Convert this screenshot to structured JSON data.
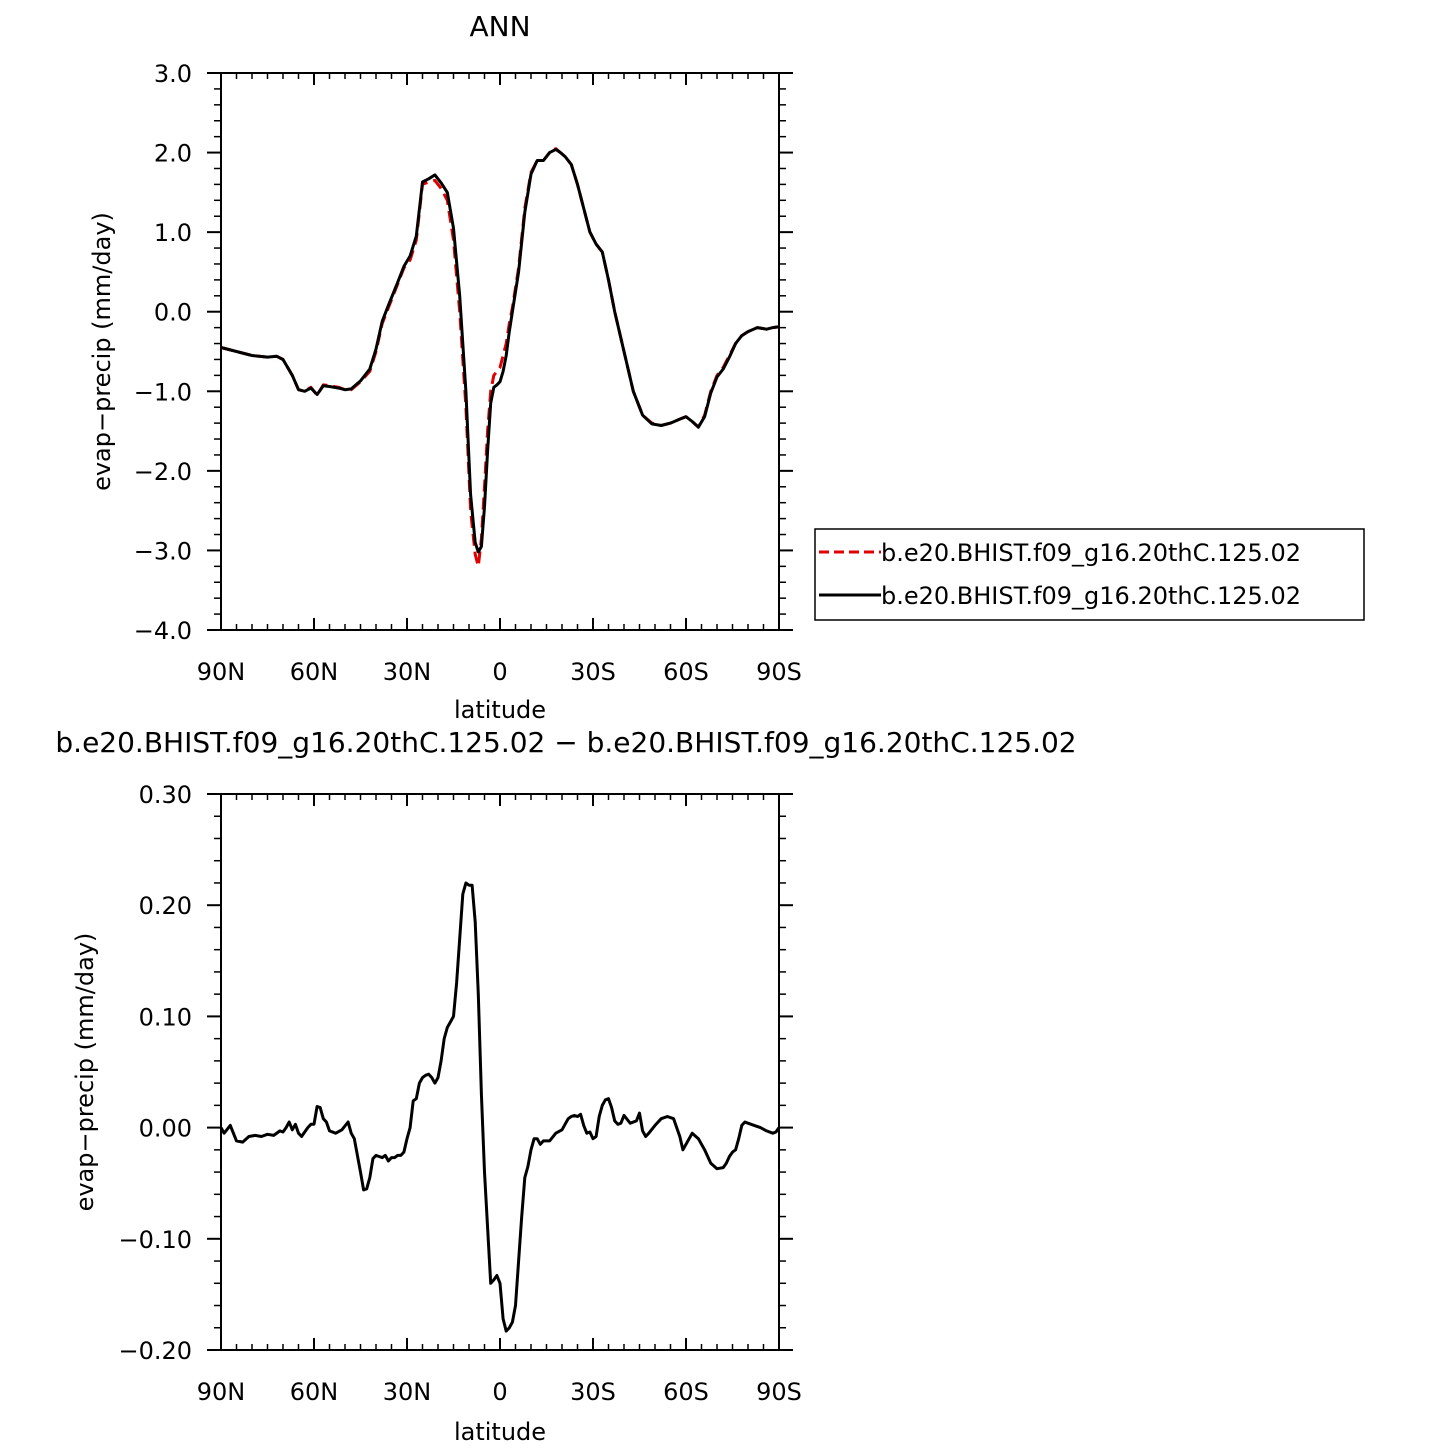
{
  "chart_data": [
    {
      "type": "line",
      "title": "ANN",
      "xlabel": "latitude",
      "ylabel": "evap−precip (mm/day)",
      "xlim": [
        90,
        -90
      ],
      "ylim": [
        -4.0,
        3.0
      ],
      "x_ticks": [
        90,
        60,
        30,
        0,
        -30,
        -60,
        -90
      ],
      "x_tick_labels": [
        "90N",
        "60N",
        "30N",
        "0",
        "30S",
        "60S",
        "90S"
      ],
      "y_ticks": [
        3.0,
        2.0,
        1.0,
        0.0,
        -1.0,
        -2.0,
        -3.0,
        -4.0
      ],
      "y_tick_labels": [
        "3.0",
        "2.0",
        "1.0",
        "0.0",
        "−1.0",
        "−2.0",
        "−3.0",
        "−4.0"
      ],
      "legend_position": "right",
      "series": [
        {
          "name": "b.e20.BHIST.f09_g16.20thC.125.02",
          "color": "#e00000",
          "style": "dashed",
          "x": [
            90,
            85,
            80,
            75,
            72,
            70,
            67,
            65,
            63,
            61,
            59,
            57,
            55,
            52,
            50,
            48,
            45,
            42,
            40,
            38,
            36,
            33,
            31,
            29,
            27,
            25,
            23,
            21,
            19,
            17,
            15,
            13,
            11,
            9.5,
            8,
            7,
            6,
            5,
            4,
            3,
            2,
            1,
            0,
            -1,
            -2,
            -3,
            -4,
            -6,
            -8,
            -10,
            -12,
            -14,
            -16,
            -18,
            -19.5,
            -21,
            -23,
            -25,
            -27,
            -29,
            -31,
            -33,
            -35,
            -37,
            -40,
            -43,
            -46,
            -49,
            -52,
            -55,
            -58,
            -60,
            -62,
            -64,
            -66,
            -68,
            -70,
            -72,
            -74,
            -76,
            -78,
            -80,
            -83,
            -86,
            -88,
            -90
          ],
          "y": [
            -0.45,
            -0.5,
            -0.55,
            -0.57,
            -0.56,
            -0.6,
            -0.8,
            -0.98,
            -1.0,
            -0.95,
            -1.05,
            -0.92,
            -0.93,
            -0.95,
            -0.98,
            -0.98,
            -0.88,
            -0.75,
            -0.5,
            -0.15,
            0.05,
            0.35,
            0.55,
            0.65,
            0.9,
            1.6,
            1.63,
            1.65,
            1.55,
            1.4,
            0.9,
            0.0,
            -1.2,
            -2.5,
            -3.05,
            -3.2,
            -2.85,
            -2.2,
            -1.5,
            -1.0,
            -0.8,
            -0.75,
            -0.7,
            -0.55,
            -0.4,
            -0.15,
            0.05,
            0.55,
            1.3,
            1.75,
            1.9,
            1.9,
            2.0,
            2.05,
            2.0,
            1.95,
            1.85,
            1.6,
            1.3,
            1.0,
            0.85,
            0.75,
            0.4,
            0.0,
            -0.5,
            -1.0,
            -1.3,
            -1.4,
            -1.43,
            -1.4,
            -1.35,
            -1.32,
            -1.38,
            -1.45,
            -1.3,
            -1.0,
            -0.8,
            -0.7,
            -0.55,
            -0.4,
            -0.3,
            -0.25,
            -0.2,
            -0.22,
            -0.2,
            -0.19
          ]
        },
        {
          "name": "b.e20.BHIST.f09_g16.20thC.125.02",
          "color": "#000000",
          "style": "solid",
          "x": [
            90,
            85,
            80,
            75,
            72,
            70,
            67,
            65,
            63,
            61,
            59,
            57,
            55,
            52,
            50,
            48,
            45,
            42,
            40,
            38,
            36,
            33,
            31,
            29,
            27,
            25,
            23,
            21,
            19,
            17,
            15,
            13,
            11,
            9.5,
            8,
            7,
            6,
            5,
            4,
            3,
            2,
            1,
            0,
            -1,
            -2,
            -3,
            -4,
            -6,
            -8,
            -10,
            -12,
            -14,
            -16,
            -18,
            -19.5,
            -21,
            -23,
            -25,
            -27,
            -29,
            -31,
            -33,
            -35,
            -37,
            -40,
            -43,
            -46,
            -49,
            -52,
            -55,
            -58,
            -60,
            -62,
            -64,
            -66,
            -68,
            -70,
            -72,
            -74,
            -76,
            -78,
            -80,
            -83,
            -86,
            -88,
            -90
          ],
          "y": [
            -0.45,
            -0.5,
            -0.55,
            -0.57,
            -0.56,
            -0.6,
            -0.8,
            -0.98,
            -1.0,
            -0.96,
            -1.04,
            -0.93,
            -0.94,
            -0.96,
            -0.98,
            -0.97,
            -0.87,
            -0.72,
            -0.47,
            -0.12,
            0.08,
            0.37,
            0.57,
            0.7,
            0.95,
            1.63,
            1.67,
            1.72,
            1.62,
            1.5,
            1.05,
            0.2,
            -1.0,
            -2.3,
            -2.9,
            -3.02,
            -2.95,
            -2.45,
            -1.75,
            -1.15,
            -0.95,
            -0.92,
            -0.88,
            -0.75,
            -0.55,
            -0.25,
            0.0,
            0.5,
            1.25,
            1.73,
            1.9,
            1.9,
            2.0,
            2.04,
            2.0,
            1.95,
            1.85,
            1.6,
            1.3,
            1.0,
            0.85,
            0.75,
            0.4,
            0.0,
            -0.5,
            -1.0,
            -1.3,
            -1.41,
            -1.43,
            -1.4,
            -1.35,
            -1.32,
            -1.38,
            -1.45,
            -1.32,
            -1.02,
            -0.82,
            -0.72,
            -0.57,
            -0.4,
            -0.3,
            -0.25,
            -0.2,
            -0.22,
            -0.2,
            -0.19
          ]
        }
      ]
    },
    {
      "type": "line",
      "title": "b.e20.BHIST.f09_g16.20thC.125.02 − b.e20.BHIST.f09_g16.20thC.125.02",
      "xlabel": "latitude",
      "ylabel": "evap−precip (mm/day)",
      "xlim": [
        90,
        -90
      ],
      "ylim": [
        -0.2,
        0.3
      ],
      "x_ticks": [
        90,
        60,
        30,
        0,
        -30,
        -60,
        -90
      ],
      "x_tick_labels": [
        "90N",
        "60N",
        "30N",
        "0",
        "30S",
        "60S",
        "90S"
      ],
      "y_ticks": [
        0.3,
        0.2,
        0.1,
        0.0,
        -0.1,
        -0.2
      ],
      "y_tick_labels": [
        "0.30",
        "0.20",
        "0.10",
        "0.00",
        "−0.10",
        "−0.20"
      ],
      "series": [
        {
          "color": "#000000",
          "style": "solid",
          "x": [
            90,
            89,
            87,
            85,
            83,
            81,
            79,
            77,
            75,
            73,
            71,
            70,
            69,
            68,
            67,
            66,
            65,
            64,
            63,
            62,
            61,
            60,
            59,
            58,
            57,
            56,
            55,
            53,
            51,
            49,
            48,
            47,
            46,
            45,
            44,
            43,
            42,
            41,
            40,
            39,
            38,
            37,
            36,
            35,
            34,
            33,
            32,
            31,
            30,
            29,
            28,
            27,
            26,
            25,
            24,
            23,
            22,
            21,
            20,
            19,
            18,
            17,
            16,
            15,
            14,
            13,
            12,
            11,
            10,
            9,
            8,
            7,
            6,
            5,
            4,
            3,
            2,
            1,
            0,
            -1,
            -2,
            -3,
            -4,
            -5,
            -6,
            -7,
            -8,
            -9,
            -10,
            -11,
            -12,
            -13,
            -14,
            -16,
            -18,
            -20,
            -22,
            -23,
            -24,
            -25,
            -26,
            -27,
            -28,
            -29,
            -30,
            -31,
            -32,
            -33,
            -34,
            -35,
            -36,
            -37,
            -38,
            -39,
            -40,
            -42,
            -44,
            -45,
            -46,
            -47,
            -48,
            -50,
            -52,
            -54,
            -56,
            -58,
            -59,
            -60,
            -62,
            -64,
            -66,
            -68,
            -70,
            -72,
            -73,
            -74,
            -75,
            -76,
            -77,
            -78,
            -79,
            -80,
            -82,
            -84,
            -86,
            -88,
            -89,
            -90
          ],
          "y": [
            0.0,
            -0.005,
            0.002,
            -0.012,
            -0.013,
            -0.008,
            -0.007,
            -0.008,
            -0.006,
            -0.007,
            -0.003,
            -0.004,
            0.0,
            0.005,
            -0.002,
            0.003,
            -0.005,
            -0.008,
            -0.004,
            0.0,
            0.003,
            0.003,
            0.019,
            0.018,
            0.008,
            0.005,
            -0.003,
            -0.005,
            -0.002,
            0.005,
            -0.005,
            -0.01,
            -0.025,
            -0.04,
            -0.056,
            -0.055,
            -0.045,
            -0.028,
            -0.025,
            -0.026,
            -0.027,
            -0.025,
            -0.03,
            -0.027,
            -0.027,
            -0.025,
            -0.025,
            -0.022,
            -0.01,
            0.0,
            0.024,
            0.026,
            0.04,
            0.045,
            0.047,
            0.048,
            0.045,
            0.04,
            0.045,
            0.06,
            0.08,
            0.09,
            0.095,
            0.1,
            0.13,
            0.17,
            0.21,
            0.22,
            0.218,
            0.218,
            0.185,
            0.12,
            0.03,
            -0.04,
            -0.09,
            -0.14,
            -0.137,
            -0.133,
            -0.14,
            -0.172,
            -0.183,
            -0.18,
            -0.175,
            -0.16,
            -0.12,
            -0.08,
            -0.045,
            -0.035,
            -0.02,
            -0.01,
            -0.01,
            -0.015,
            -0.012,
            -0.012,
            -0.005,
            -0.002,
            0.008,
            0.01,
            0.011,
            0.01,
            0.012,
            0.002,
            -0.005,
            -0.004,
            -0.01,
            -0.008,
            0.01,
            0.02,
            0.025,
            0.026,
            0.018,
            0.006,
            0.003,
            0.004,
            0.011,
            0.004,
            0.006,
            0.013,
            -0.003,
            -0.008,
            -0.005,
            0.002,
            0.008,
            0.01,
            0.008,
            -0.008,
            -0.02,
            -0.015,
            -0.005,
            -0.01,
            -0.02,
            -0.032,
            -0.037,
            -0.036,
            -0.032,
            -0.026,
            -0.022,
            -0.02,
            -0.01,
            0.002,
            0.005,
            0.004,
            0.002,
            0.0,
            -0.003,
            -0.005,
            -0.004,
            0.0
          ]
        }
      ]
    }
  ]
}
